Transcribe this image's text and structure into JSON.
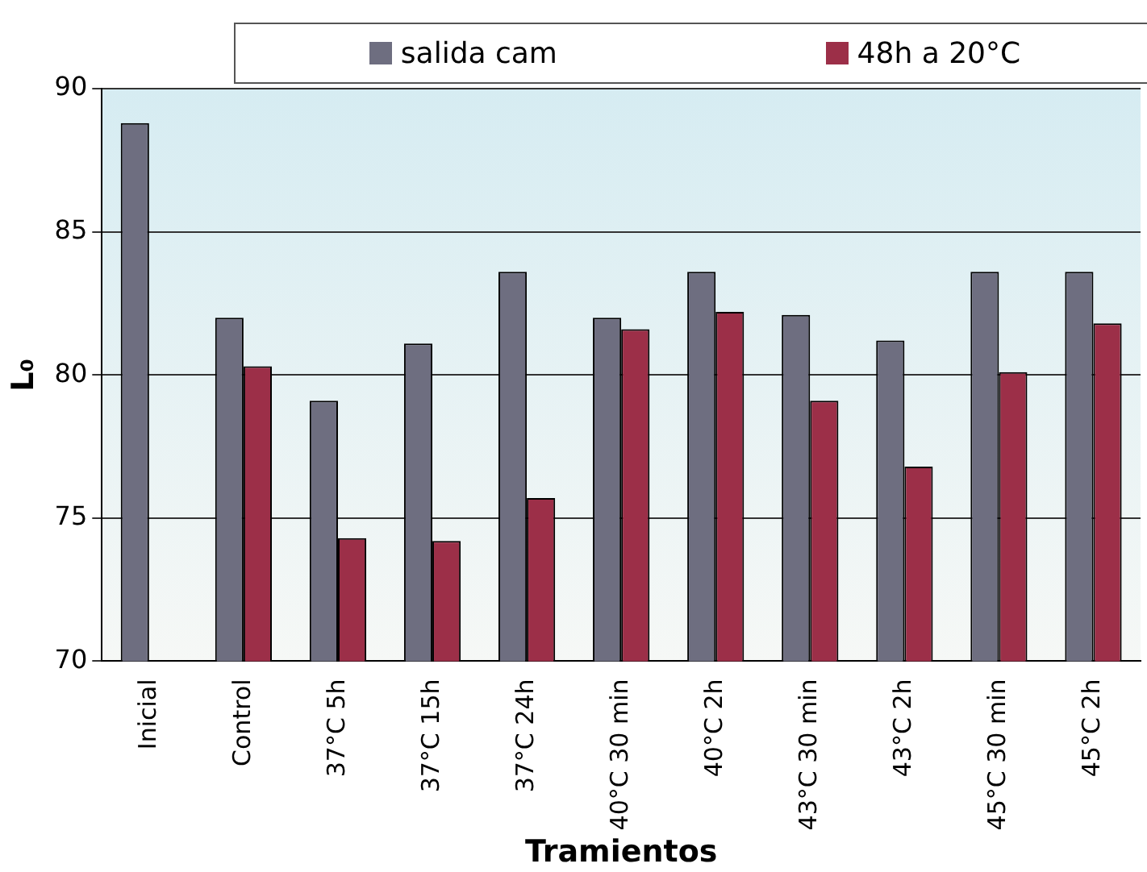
{
  "chart_data": {
    "type": "bar",
    "xlabel": "Tramientos",
    "ylabel": "L₀",
    "categories": [
      "Inicial",
      "Control",
      "37°C 5h",
      "37°C 15h",
      "37°C 24h",
      "40°C 30 min",
      "40°C 2h",
      "43°C 30 min",
      "43°C 2h",
      "45°C 30 min",
      "45°C 2h"
    ],
    "series": [
      {
        "name": "salida cam",
        "color": "#6e6e80",
        "values": [
          88.8,
          82.0,
          79.1,
          81.1,
          83.6,
          82.0,
          83.6,
          82.1,
          81.2,
          83.6,
          83.6
        ]
      },
      {
        "name": "48h a 20°C",
        "color": "#9c2f48",
        "values": [
          null,
          80.3,
          74.3,
          74.2,
          75.7,
          81.6,
          82.2,
          79.1,
          76.8,
          80.1,
          81.8
        ]
      }
    ],
    "ylim": [
      70,
      90
    ],
    "yticks": [
      70,
      75,
      80,
      85,
      90
    ],
    "grid": "y",
    "legend": "top"
  }
}
